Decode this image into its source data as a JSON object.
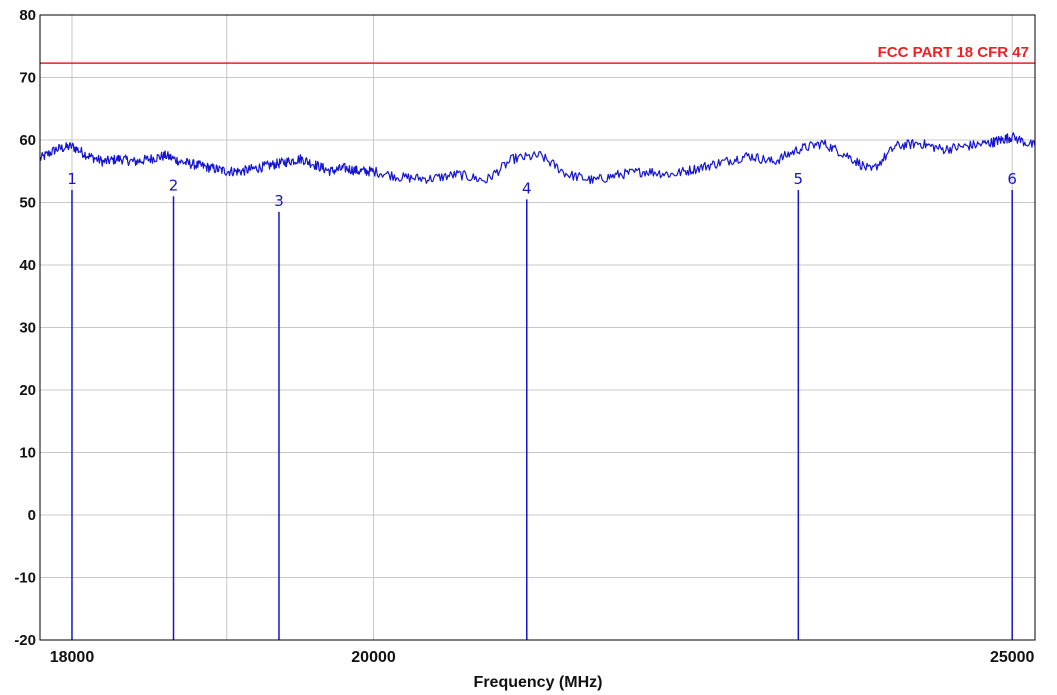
{
  "chart_data": {
    "type": "line",
    "title": "",
    "xlabel": "Frequency (MHz)",
    "ylabel": "",
    "x_scale": "log",
    "xlim": [
      17800,
      25200
    ],
    "ylim": [
      -20,
      80
    ],
    "x_ticks": [
      18000,
      20000,
      25000
    ],
    "x_ticks_labelled": [
      "18000",
      "20000",
      "25000"
    ],
    "x_grid_only": [
      19000
    ],
    "y_ticks": [
      80,
      70,
      60,
      50,
      40,
      30,
      20,
      10,
      0,
      -10,
      -20
    ],
    "y_tick_labels": [
      "80",
      "70",
      "60",
      "50",
      "40",
      "30",
      "20",
      "10",
      "0",
      "-10",
      "-20"
    ],
    "grid": true,
    "colors": {
      "trace": "#1515d0",
      "limit": "#ee2020",
      "grid": "#c8c8c8",
      "axis": "#000000"
    },
    "limit_line": {
      "name": "FCC PART 18 CFR 47",
      "y": 72.3
    },
    "series": [
      {
        "x": [
          17800,
          17900,
          18000,
          18100,
          18200,
          18300,
          18400,
          18500,
          18600,
          18700,
          18800,
          18900,
          19000,
          19100,
          19200,
          19300,
          19400,
          19500,
          19600,
          19700,
          19800,
          19900,
          20000,
          20200,
          20400,
          20600,
          20800,
          21000,
          21200,
          21400,
          21600,
          21800,
          22000,
          22200,
          22400,
          22600,
          22800,
          23000,
          23200,
          23400,
          23600,
          23800,
          24000,
          24200,
          24400,
          24600,
          24800,
          24900,
          25000,
          25200
        ],
        "y": [
          57.0,
          58.5,
          59.0,
          57.5,
          56.5,
          57.0,
          56.5,
          57.0,
          57.5,
          56.5,
          56.0,
          55.5,
          55.0,
          55.0,
          55.5,
          56.0,
          56.5,
          57.0,
          56.0,
          55.0,
          55.5,
          55.0,
          55.0,
          54.0,
          53.8,
          54.5,
          53.5,
          57.0,
          57.5,
          54.5,
          53.5,
          54.5,
          55.0,
          54.5,
          55.5,
          56.5,
          57.5,
          56.5,
          58.5,
          59.5,
          57.5,
          55.0,
          59.0,
          59.5,
          58.5,
          59.0,
          59.5,
          60.0,
          60.5,
          59.0
        ]
      }
    ],
    "markers": [
      {
        "label": "1",
        "x": 18000,
        "y": 52.0
      },
      {
        "label": "2",
        "x": 18650,
        "y": 51.0
      },
      {
        "label": "3",
        "x": 19350,
        "y": 48.5
      },
      {
        "label": "4",
        "x": 21100,
        "y": 50.5
      },
      {
        "label": "5",
        "x": 23200,
        "y": 52.0
      },
      {
        "label": "6",
        "x": 25000,
        "y": 52.0
      }
    ]
  }
}
